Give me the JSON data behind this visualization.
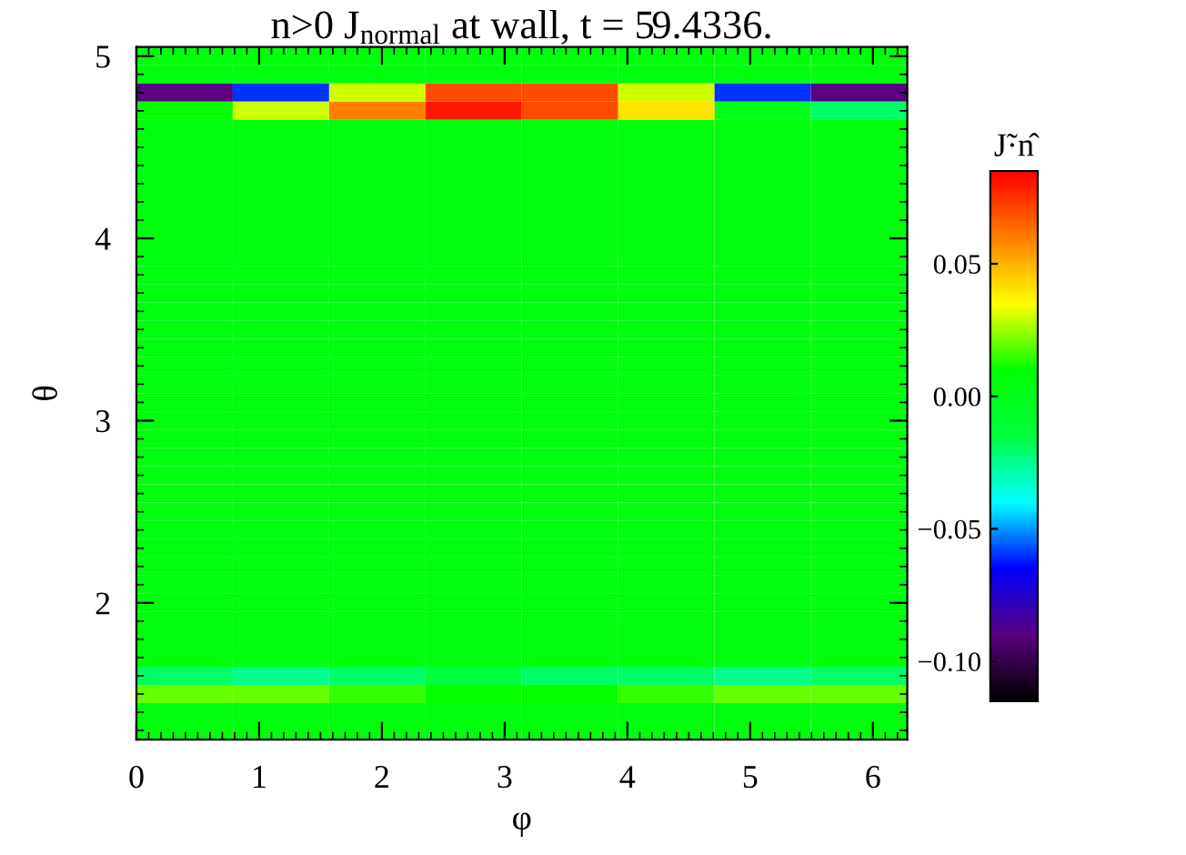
{
  "chart_data": {
    "type": "heatmap",
    "title": "n>0 J$_{normal}$ at wall, t = 59.4336.",
    "xlabel": "φ",
    "ylabel": "θ",
    "clabel": "J̃·n̂",
    "cells": [
      [
        0.005,
        0.005,
        0.005,
        0.005,
        0.005,
        0.005,
        0.005,
        0.005
      ],
      [
        0.005,
        0.005,
        0.005,
        0.005,
        0.005,
        0.005,
        0.005,
        0.005
      ],
      [
        -0.09,
        -0.06,
        0.03,
        0.07,
        0.07,
        0.03,
        -0.06,
        -0.09
      ],
      [
        0.01,
        0.03,
        0.06,
        0.08,
        0.07,
        0.04,
        0.0,
        -0.02
      ],
      [
        0.005,
        0.005,
        0.005,
        0.005,
        0.005,
        0.005,
        0.005,
        0.005
      ],
      [
        0.005,
        0.005,
        0.005,
        0.005,
        0.005,
        0.005,
        0.005,
        0.005
      ],
      [
        0.005,
        0.005,
        0.005,
        0.005,
        0.005,
        0.005,
        0.005,
        0.005
      ],
      [
        0.005,
        0.005,
        0.005,
        0.005,
        0.005,
        0.005,
        0.005,
        0.005
      ],
      [
        0.005,
        0.005,
        0.005,
        0.005,
        0.005,
        0.005,
        0.005,
        0.005
      ],
      [
        0.005,
        0.005,
        0.005,
        0.005,
        0.005,
        0.005,
        0.005,
        0.005
      ],
      [
        0.005,
        0.005,
        0.005,
        0.005,
        0.005,
        0.005,
        0.005,
        0.005
      ],
      [
        0.005,
        0.005,
        0.005,
        0.005,
        0.005,
        0.005,
        0.005,
        0.005
      ],
      [
        0.005,
        0.005,
        0.005,
        0.005,
        0.005,
        0.005,
        0.005,
        0.005
      ],
      [
        0.005,
        0.005,
        0.005,
        0.005,
        0.005,
        0.005,
        0.005,
        0.005
      ],
      [
        0.005,
        0.005,
        0.005,
        0.005,
        0.005,
        0.005,
        0.005,
        0.005
      ],
      [
        0.005,
        0.005,
        0.005,
        0.005,
        0.005,
        0.005,
        0.005,
        0.005
      ],
      [
        0.005,
        0.005,
        0.005,
        0.005,
        0.005,
        0.005,
        0.005,
        0.005
      ],
      [
        0.005,
        0.005,
        0.005,
        0.005,
        0.005,
        0.005,
        0.005,
        0.005
      ],
      [
        0.005,
        0.005,
        0.005,
        0.005,
        0.005,
        0.005,
        0.005,
        0.005
      ],
      [
        0.005,
        0.005,
        0.005,
        0.005,
        0.005,
        0.005,
        0.005,
        0.005
      ],
      [
        0.005,
        0.005,
        0.005,
        0.005,
        0.005,
        0.005,
        0.005,
        0.005
      ],
      [
        0.005,
        0.005,
        0.005,
        0.005,
        0.005,
        0.005,
        0.005,
        0.005
      ],
      [
        0.005,
        0.005,
        0.005,
        0.005,
        0.005,
        0.005,
        0.005,
        0.005
      ],
      [
        0.005,
        0.005,
        0.005,
        0.005,
        0.005,
        0.005,
        0.005,
        0.005
      ],
      [
        0.005,
        0.005,
        0.005,
        0.005,
        0.005,
        0.005,
        0.005,
        0.005
      ],
      [
        0.005,
        0.005,
        0.005,
        0.005,
        0.005,
        0.005,
        0.005,
        0.005
      ],
      [
        0.005,
        0.005,
        0.005,
        0.005,
        0.005,
        0.005,
        0.005,
        0.005
      ],
      [
        0.005,
        0.005,
        0.005,
        0.005,
        0.005,
        0.005,
        0.005,
        0.005
      ],
      [
        0.005,
        0.005,
        0.005,
        0.005,
        0.005,
        0.005,
        0.005,
        0.005
      ],
      [
        0.005,
        0.005,
        0.005,
        0.005,
        0.005,
        0.005,
        0.005,
        0.005
      ],
      [
        0.005,
        0.005,
        0.005,
        0.005,
        0.005,
        0.005,
        0.005,
        0.005
      ],
      [
        0.005,
        0.005,
        0.005,
        0.005,
        0.005,
        0.005,
        0.005,
        0.005
      ],
      [
        0.005,
        0.005,
        0.005,
        0.005,
        0.005,
        0.005,
        0.005,
        0.005
      ],
      [
        0.005,
        0.005,
        0.005,
        0.005,
        0.005,
        0.005,
        0.005,
        0.005
      ],
      [
        -0.02,
        -0.025,
        -0.02,
        -0.015,
        -0.02,
        -0.02,
        -0.025,
        -0.02
      ],
      [
        0.02,
        0.02,
        0.015,
        0.01,
        0.01,
        0.015,
        0.02,
        0.02
      ],
      [
        0.005,
        0.005,
        0.005,
        0.005,
        0.005,
        0.005,
        0.005,
        0.005
      ],
      [
        0.005,
        0.005,
        0.005,
        0.005,
        0.005,
        0.005,
        0.005,
        0.005
      ]
    ],
    "xlim": [
      0,
      6.28
    ],
    "ylim": [
      1.25,
      5.05
    ],
    "xticks": [
      0,
      1,
      2,
      3,
      4,
      5,
      6
    ],
    "yticks": [
      2,
      3,
      4,
      5
    ],
    "clim": [
      -0.115,
      0.085
    ],
    "cticks": [
      {
        "value": -0.1,
        "label": "−0.10"
      },
      {
        "value": -0.05,
        "label": "−0.05"
      },
      {
        "value": 0,
        "label": "0.00"
      },
      {
        "value": 0.05,
        "label": "0.05"
      }
    ]
  }
}
